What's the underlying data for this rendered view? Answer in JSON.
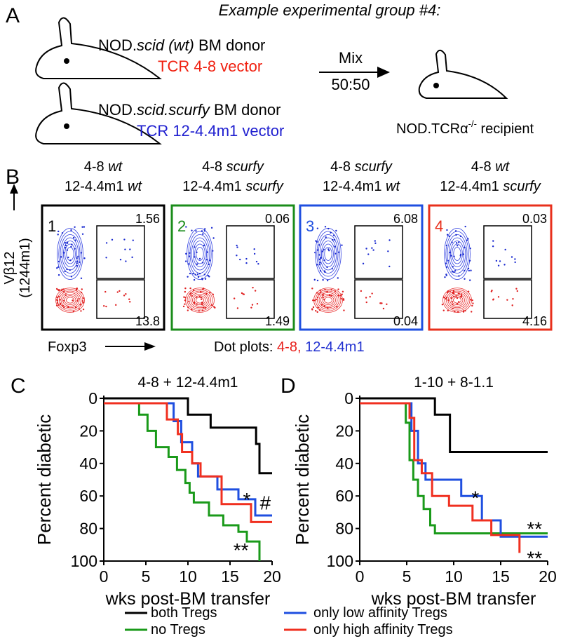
{
  "panel_a": {
    "label": "A",
    "title": "Example experimental group #4:",
    "donor1": {
      "parts": [
        "NOD.",
        "scid (wt)",
        " BM donor"
      ],
      "vector": "TCR 4-8 vector"
    },
    "donor2": {
      "parts": [
        "NOD.",
        "scid.scurfy",
        " BM donor"
      ],
      "vector": "TCR 12-4.4m1 vector"
    },
    "mix": "Mix",
    "ratio": "50:50",
    "recipient": {
      "parts": [
        "NOD.TCR",
        "α",
        "-/-",
        " recipient"
      ]
    }
  },
  "panel_b": {
    "label": "B",
    "y_label": [
      "Vβ12",
      "(1244m1)"
    ],
    "x_label": "Foxp3",
    "caption": [
      "Dot plots: ",
      "4-8,",
      "12-4.4m1"
    ],
    "plots": [
      {
        "number": "1",
        "color": "#000000",
        "line1": [
          "4-8",
          "wt"
        ],
        "line2": [
          "12-4.4m1",
          "wt"
        ],
        "top": "1.56",
        "bottom": "13.8"
      },
      {
        "number": "2",
        "color": "#1a8c1a",
        "line1": [
          "4-8",
          "scurfy"
        ],
        "line2": [
          "12-4.4m1",
          "scurfy"
        ],
        "top": "0.06",
        "bottom": "1.49"
      },
      {
        "number": "3",
        "color": "#1f4fe0",
        "line1": [
          "4-8",
          "scurfy"
        ],
        "line2": [
          "12-4.4m1",
          "wt"
        ],
        "top": "6.08",
        "bottom": "0.04"
      },
      {
        "number": "4",
        "color": "#e8301c",
        "line1": [
          "4-8",
          "wt"
        ],
        "line2": [
          "12-4.4m1",
          "scurfy"
        ],
        "top": "0.03",
        "bottom": "4.16"
      }
    ]
  },
  "chart_data": [
    {
      "type": "step",
      "panel_label": "C",
      "title": "4-8 + 12-4.4m1",
      "y_label": "Percent diabetic",
      "x_label": "wks post-BM transfer",
      "xlim": [
        0,
        20
      ],
      "xticks": [
        0,
        5,
        10,
        15,
        20
      ],
      "ylim": [
        100,
        0
      ],
      "yticks": [
        0,
        20,
        40,
        60,
        80,
        100
      ],
      "legend": "bottom",
      "series": [
        {
          "name": "both Tregs",
          "color": "#000000",
          "x": [
            0,
            10,
            12.7,
            18.1,
            18.5,
            20
          ],
          "values": [
            0,
            10,
            18,
            28,
            46,
            46
          ]
        },
        {
          "name": "no Tregs",
          "color": "#1a9a1a",
          "x": [
            0,
            4.2,
            5.2,
            6.2,
            7.7,
            8.7,
            9.7,
            10.2,
            10.7,
            12.5,
            14.2,
            16,
            17,
            18.5
          ],
          "values": [
            3,
            10,
            20,
            30,
            36,
            44,
            52,
            58,
            64,
            72,
            78,
            82,
            88,
            100
          ]
        },
        {
          "name": "only low affinity Tregs",
          "color": "#1f4fe0",
          "x": [
            0,
            8.3,
            9.2,
            10.5,
            11.2,
            13.5,
            16,
            18,
            20
          ],
          "values": [
            3,
            14,
            27,
            40,
            48,
            56,
            62,
            72,
            72
          ]
        },
        {
          "name": "only high affinity Tregs",
          "color": "#f03020",
          "x": [
            0,
            7.5,
            8.8,
            9.3,
            10.5,
            11.5,
            14,
            17.5,
            20
          ],
          "values": [
            3,
            13,
            22,
            33,
            40,
            48,
            65,
            76,
            76
          ]
        }
      ],
      "annotations": [
        {
          "text": "*",
          "x": 17,
          "y": 62
        },
        {
          "text": "#",
          "x": 19.2,
          "y": 64
        },
        {
          "text": "**",
          "x": 16.3,
          "y": 93
        }
      ]
    },
    {
      "type": "step",
      "panel_label": "D",
      "title": "1-10 + 8-1.1",
      "y_label": "Percent diabetic",
      "x_label": "wks post-BM transfer",
      "xlim": [
        0,
        20
      ],
      "xticks": [
        0,
        5,
        10,
        15,
        20
      ],
      "ylim": [
        100,
        0
      ],
      "yticks": [
        0,
        20,
        40,
        60,
        80,
        100
      ],
      "series": [
        {
          "color": "#000000",
          "x": [
            0,
            8,
            9.6,
            20
          ],
          "values": [
            0,
            10,
            33,
            33
          ]
        },
        {
          "color": "#1a9a1a",
          "x": [
            0,
            4.9,
            5.3,
            5.7,
            6.2,
            6.8,
            7.5,
            8,
            20
          ],
          "values": [
            3,
            15,
            38,
            50,
            60,
            68,
            78,
            83,
            83
          ]
        },
        {
          "color": "#1f4fe0",
          "x": [
            0,
            5.5,
            6.2,
            7,
            9,
            10.8,
            13,
            15,
            20
          ],
          "values": [
            3,
            20,
            40,
            50,
            50,
            60,
            75,
            85,
            85
          ]
        },
        {
          "color": "#f03020",
          "x": [
            0,
            5.3,
            5.8,
            6.6,
            7.7,
            9.5,
            12,
            14,
            17
          ],
          "values": [
            3,
            12,
            38,
            46,
            60,
            66,
            75,
            84,
            95
          ]
        }
      ],
      "annotations": [
        {
          "text": "*",
          "x": 12.3,
          "y": 61
        },
        {
          "text": "**",
          "x": 18.6,
          "y": 80
        },
        {
          "text": "**",
          "x": 18.6,
          "y": 98
        }
      ]
    }
  ]
}
